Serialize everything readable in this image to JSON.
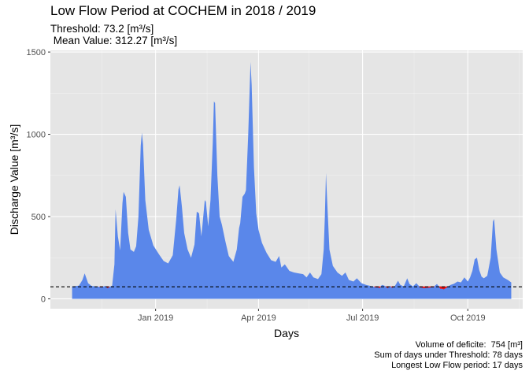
{
  "chart_data": {
    "type": "area",
    "title": "Low Flow Period at COCHEM in 2018 / 2019",
    "subtitle_threshold": "Threshold: 73.2 [m³/s]",
    "subtitle_mean": " Mean Value: 312.27 [m³/s]",
    "xlabel": "Days",
    "ylabel": "Discharge Value [m³/s]",
    "ylim": [
      -60,
      1510
    ],
    "xlim": [
      "2018-10-01",
      "2019-11-18"
    ],
    "x_ticks": [
      {
        "date": "2019-01-01",
        "label": "Jan 2019"
      },
      {
        "date": "2019-04-01",
        "label": "Apr 2019"
      },
      {
        "date": "2019-07-01",
        "label": "Jul 2019"
      },
      {
        "date": "2019-10-01",
        "label": "Oct 2019"
      }
    ],
    "x_minor_ticks": [
      "2018-11-15",
      "2019-02-15",
      "2019-05-15",
      "2019-08-15",
      "2019-11-15"
    ],
    "y_ticks": [
      0,
      500,
      1000,
      1500
    ],
    "grid": true,
    "threshold": 73.2,
    "fill_color": "#5a87ea",
    "deficit_color": "#ee1111",
    "threshold_line_color": "#000000",
    "panel_background": "#e5e5e5",
    "series": [
      {
        "points": [
          [
            "2018-10-20",
            75
          ],
          [
            "2018-10-26",
            80
          ],
          [
            "2018-10-29",
            115
          ],
          [
            "2018-10-31",
            155
          ],
          [
            "2018-11-03",
            95
          ],
          [
            "2018-11-06",
            78
          ],
          [
            "2018-11-10",
            75
          ],
          [
            "2018-11-15",
            72
          ],
          [
            "2018-11-18",
            78
          ],
          [
            "2018-11-20",
            68
          ],
          [
            "2018-11-24",
            80
          ],
          [
            "2018-11-26",
            210
          ],
          [
            "2018-11-27",
            545
          ],
          [
            "2018-11-29",
            380
          ],
          [
            "2018-12-01",
            295
          ],
          [
            "2018-12-03",
            580
          ],
          [
            "2018-12-04",
            650
          ],
          [
            "2018-12-06",
            620
          ],
          [
            "2018-12-08",
            400
          ],
          [
            "2018-12-10",
            300
          ],
          [
            "2018-12-13",
            285
          ],
          [
            "2018-12-15",
            320
          ],
          [
            "2018-12-17",
            500
          ],
          [
            "2018-12-19",
            930
          ],
          [
            "2018-12-20",
            1010
          ],
          [
            "2018-12-21",
            940
          ],
          [
            "2018-12-23",
            600
          ],
          [
            "2018-12-26",
            420
          ],
          [
            "2018-12-30",
            325
          ],
          [
            "2019-01-04",
            270
          ],
          [
            "2019-01-08",
            230
          ],
          [
            "2019-01-12",
            215
          ],
          [
            "2019-01-16",
            265
          ],
          [
            "2019-01-19",
            480
          ],
          [
            "2019-01-21",
            665
          ],
          [
            "2019-01-22",
            690
          ],
          [
            "2019-01-24",
            560
          ],
          [
            "2019-01-26",
            400
          ],
          [
            "2019-01-29",
            300
          ],
          [
            "2019-02-01",
            250
          ],
          [
            "2019-02-04",
            330
          ],
          [
            "2019-02-06",
            530
          ],
          [
            "2019-02-08",
            520
          ],
          [
            "2019-02-10",
            380
          ],
          [
            "2019-02-11",
            450
          ],
          [
            "2019-02-13",
            600
          ],
          [
            "2019-02-14",
            590
          ],
          [
            "2019-02-16",
            440
          ],
          [
            "2019-02-18",
            600
          ],
          [
            "2019-02-20",
            950
          ],
          [
            "2019-02-21",
            1200
          ],
          [
            "2019-02-22",
            1190
          ],
          [
            "2019-02-24",
            750
          ],
          [
            "2019-02-26",
            500
          ],
          [
            "2019-02-28",
            450
          ],
          [
            "2019-03-03",
            350
          ],
          [
            "2019-03-06",
            260
          ],
          [
            "2019-03-10",
            225
          ],
          [
            "2019-03-13",
            300
          ],
          [
            "2019-03-15",
            430
          ],
          [
            "2019-03-16",
            460
          ],
          [
            "2019-03-18",
            620
          ],
          [
            "2019-03-20",
            640
          ],
          [
            "2019-03-21",
            660
          ],
          [
            "2019-03-23",
            1000
          ],
          [
            "2019-03-25",
            1440
          ],
          [
            "2019-03-26",
            1300
          ],
          [
            "2019-03-28",
            800
          ],
          [
            "2019-03-30",
            520
          ],
          [
            "2019-04-01",
            420
          ],
          [
            "2019-04-04",
            340
          ],
          [
            "2019-04-08",
            280
          ],
          [
            "2019-04-12",
            235
          ],
          [
            "2019-04-16",
            225
          ],
          [
            "2019-04-19",
            260
          ],
          [
            "2019-04-21",
            190
          ],
          [
            "2019-04-24",
            210
          ],
          [
            "2019-04-28",
            170
          ],
          [
            "2019-05-02",
            160
          ],
          [
            "2019-05-06",
            155
          ],
          [
            "2019-05-10",
            150
          ],
          [
            "2019-05-13",
            130
          ],
          [
            "2019-05-16",
            160
          ],
          [
            "2019-05-19",
            130
          ],
          [
            "2019-05-23",
            120
          ],
          [
            "2019-05-26",
            150
          ],
          [
            "2019-05-28",
            300
          ],
          [
            "2019-05-29",
            500
          ],
          [
            "2019-05-30",
            765
          ],
          [
            "2019-05-31",
            600
          ],
          [
            "2019-06-02",
            300
          ],
          [
            "2019-06-05",
            200
          ],
          [
            "2019-06-09",
            160
          ],
          [
            "2019-06-13",
            140
          ],
          [
            "2019-06-16",
            160
          ],
          [
            "2019-06-19",
            115
          ],
          [
            "2019-06-23",
            105
          ],
          [
            "2019-06-26",
            125
          ],
          [
            "2019-06-30",
            95
          ],
          [
            "2019-07-04",
            85
          ],
          [
            "2019-07-08",
            78
          ],
          [
            "2019-07-12",
            72
          ],
          [
            "2019-07-16",
            69
          ],
          [
            "2019-07-18",
            85
          ],
          [
            "2019-07-20",
            80
          ],
          [
            "2019-07-23",
            68
          ],
          [
            "2019-07-25",
            78
          ],
          [
            "2019-07-27",
            70
          ],
          [
            "2019-07-29",
            75
          ],
          [
            "2019-08-01",
            110
          ],
          [
            "2019-08-03",
            85
          ],
          [
            "2019-08-06",
            75
          ],
          [
            "2019-08-09",
            125
          ],
          [
            "2019-08-11",
            90
          ],
          [
            "2019-08-14",
            75
          ],
          [
            "2019-08-17",
            95
          ],
          [
            "2019-08-20",
            72
          ],
          [
            "2019-08-24",
            67
          ],
          [
            "2019-08-28",
            70
          ],
          [
            "2019-09-01",
            72
          ],
          [
            "2019-09-04",
            90
          ],
          [
            "2019-09-07",
            65
          ],
          [
            "2019-09-10",
            60
          ],
          [
            "2019-09-13",
            72
          ],
          [
            "2019-09-16",
            85
          ],
          [
            "2019-09-19",
            92
          ],
          [
            "2019-09-22",
            105
          ],
          [
            "2019-09-25",
            100
          ],
          [
            "2019-09-28",
            130
          ],
          [
            "2019-10-01",
            105
          ],
          [
            "2019-10-03",
            130
          ],
          [
            "2019-10-05",
            170
          ],
          [
            "2019-10-07",
            240
          ],
          [
            "2019-10-09",
            250
          ],
          [
            "2019-10-11",
            175
          ],
          [
            "2019-10-13",
            135
          ],
          [
            "2019-10-15",
            125
          ],
          [
            "2019-10-18",
            140
          ],
          [
            "2019-10-21",
            250
          ],
          [
            "2019-10-23",
            470
          ],
          [
            "2019-10-24",
            485
          ],
          [
            "2019-10-26",
            300
          ],
          [
            "2019-10-29",
            160
          ],
          [
            "2019-11-01",
            130
          ],
          [
            "2019-11-05",
            115
          ],
          [
            "2019-11-08",
            100
          ]
        ]
      }
    ]
  },
  "caption": {
    "line1": "Volume of deficite:  754 [m³]",
    "line2": "Sum of days under Threshold: 78 days",
    "line3": "Longest Low Flow period: 17 days"
  }
}
